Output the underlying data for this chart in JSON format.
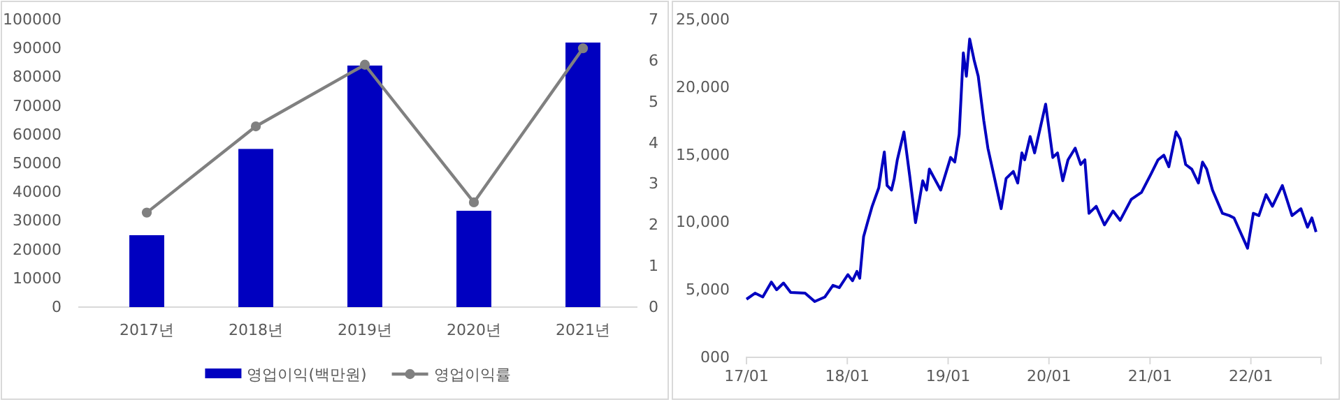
{
  "chart_data": [
    {
      "type": "bar",
      "categories": [
        "2017년",
        "2018년",
        "2019년",
        "2020년",
        "2021년"
      ],
      "series": [
        {
          "name": "영업이익(백만원)",
          "color": "#0000c0",
          "values": [
            25000,
            55000,
            84000,
            33500,
            92000
          ]
        },
        {
          "name": "영업이익률",
          "type": "line",
          "axis": "y2",
          "color": "#808080",
          "values": [
            2.3,
            4.4,
            5.9,
            2.55,
            6.3
          ]
        }
      ],
      "ylim": [
        0,
        100000
      ],
      "yticks": [
        0,
        10000,
        20000,
        30000,
        40000,
        50000,
        60000,
        70000,
        80000,
        90000,
        100000
      ],
      "y2lim": [
        0,
        7
      ],
      "y2ticks": [
        0,
        1,
        2,
        3,
        4,
        5,
        6,
        7
      ],
      "legend": "bottom",
      "marker": "circle",
      "grid": false
    },
    {
      "type": "line",
      "series": [
        {
          "color": "#0000c0",
          "x": [
            "2017-01-01",
            "2017-02-01",
            "2017-03-01",
            "2017-04-01",
            "2017-04-20",
            "2017-05-15",
            "2017-06-10",
            "2017-08-01",
            "2017-09-05",
            "2017-10-12",
            "2017-11-10",
            "2017-12-03",
            "2018-01-03",
            "2018-01-20",
            "2018-02-05",
            "2018-02-15",
            "2018-03-01",
            "2018-03-15",
            "2018-04-01",
            "2018-04-25",
            "2018-05-05",
            "2018-05-15",
            "2018-05-25",
            "2018-06-10",
            "2018-06-20",
            "2018-07-01",
            "2018-07-25",
            "2018-08-15",
            "2018-09-05",
            "2018-10-01",
            "2018-10-15",
            "2018-10-25",
            "2018-12-05",
            "2019-01-10",
            "2019-01-25",
            "2019-02-10",
            "2019-02-25",
            "2019-03-08",
            "2019-03-20",
            "2019-04-05",
            "2019-04-20",
            "2019-05-10",
            "2019-05-25",
            "2019-06-20",
            "2019-07-12",
            "2019-07-30",
            "2019-08-25",
            "2019-09-10",
            "2019-09-25",
            "2019-10-05",
            "2019-10-25",
            "2019-11-10",
            "2019-12-20",
            "2020-01-15",
            "2020-02-01",
            "2020-02-20",
            "2020-03-10",
            "2020-04-05",
            "2020-04-25",
            "2020-05-10",
            "2020-05-25",
            "2020-06-20",
            "2020-07-01",
            "2020-07-20",
            "2020-08-20",
            "2020-09-15",
            "2020-10-25",
            "2020-12-01",
            "2021-01-05",
            "2021-01-30",
            "2021-02-20",
            "2021-03-10",
            "2021-04-05",
            "2021-04-20",
            "2021-05-10",
            "2021-06-01",
            "2021-06-25",
            "2021-07-10",
            "2021-07-25",
            "2021-08-15",
            "2021-09-20",
            "2021-10-15",
            "2021-11-01",
            "2021-12-20",
            "2022-01-10",
            "2022-01-30",
            "2022-02-25",
            "2022-03-20",
            "2022-04-25",
            "2022-05-30",
            "2022-07-01",
            "2022-07-25",
            "2022-08-10",
            "2022-08-25"
          ],
          "values": [
            4300,
            4750,
            4470,
            5570,
            5000,
            5500,
            4800,
            4750,
            4130,
            4470,
            5330,
            5160,
            6120,
            5670,
            6360,
            5850,
            8940,
            9970,
            11180,
            12550,
            13930,
            15200,
            12720,
            12380,
            13240,
            14620,
            16680,
            13410,
            9970,
            13070,
            12380,
            13930,
            12380,
            14790,
            14450,
            16510,
            22530,
            20800,
            23560,
            22010,
            20800,
            17540,
            15480,
            13070,
            11000,
            13240,
            13760,
            12900,
            15130,
            14620,
            16340,
            15130,
            18740,
            14790,
            15130,
            13070,
            14620,
            15480,
            14270,
            14620,
            10660,
            11180,
            10660,
            9800,
            10830,
            10140,
            11690,
            12210,
            13590,
            14620,
            14960,
            14100,
            16680,
            16160,
            14270,
            13930,
            12900,
            14450,
            13930,
            12380,
            10660,
            10490,
            10320,
            8080,
            10660,
            10490,
            12040,
            11180,
            12720,
            10490,
            11000,
            9630,
            10320,
            9280
          ]
        }
      ],
      "xlim": [
        "2017-01-01",
        "2022-09-12"
      ],
      "xticks": [
        {
          "value": "2017-01-01",
          "label": "17/01"
        },
        {
          "value": "2018-01-01",
          "label": "18/01"
        },
        {
          "value": "2019-01-01",
          "label": "19/01"
        },
        {
          "value": "2020-01-01",
          "label": "20/01"
        },
        {
          "value": "2021-01-01",
          "label": "21/01"
        },
        {
          "value": "2022-01-01",
          "label": "22/01"
        }
      ],
      "ylim": [
        0,
        25000
      ],
      "yticks": [
        {
          "value": 0,
          "label": "000"
        },
        {
          "value": 5000,
          "label": "5,000"
        },
        {
          "value": 10000,
          "label": "10,000"
        },
        {
          "value": 15000,
          "label": "15,000"
        },
        {
          "value": 20000,
          "label": "20,000"
        },
        {
          "value": 25000,
          "label": "25,000"
        }
      ],
      "grid": false
    }
  ]
}
